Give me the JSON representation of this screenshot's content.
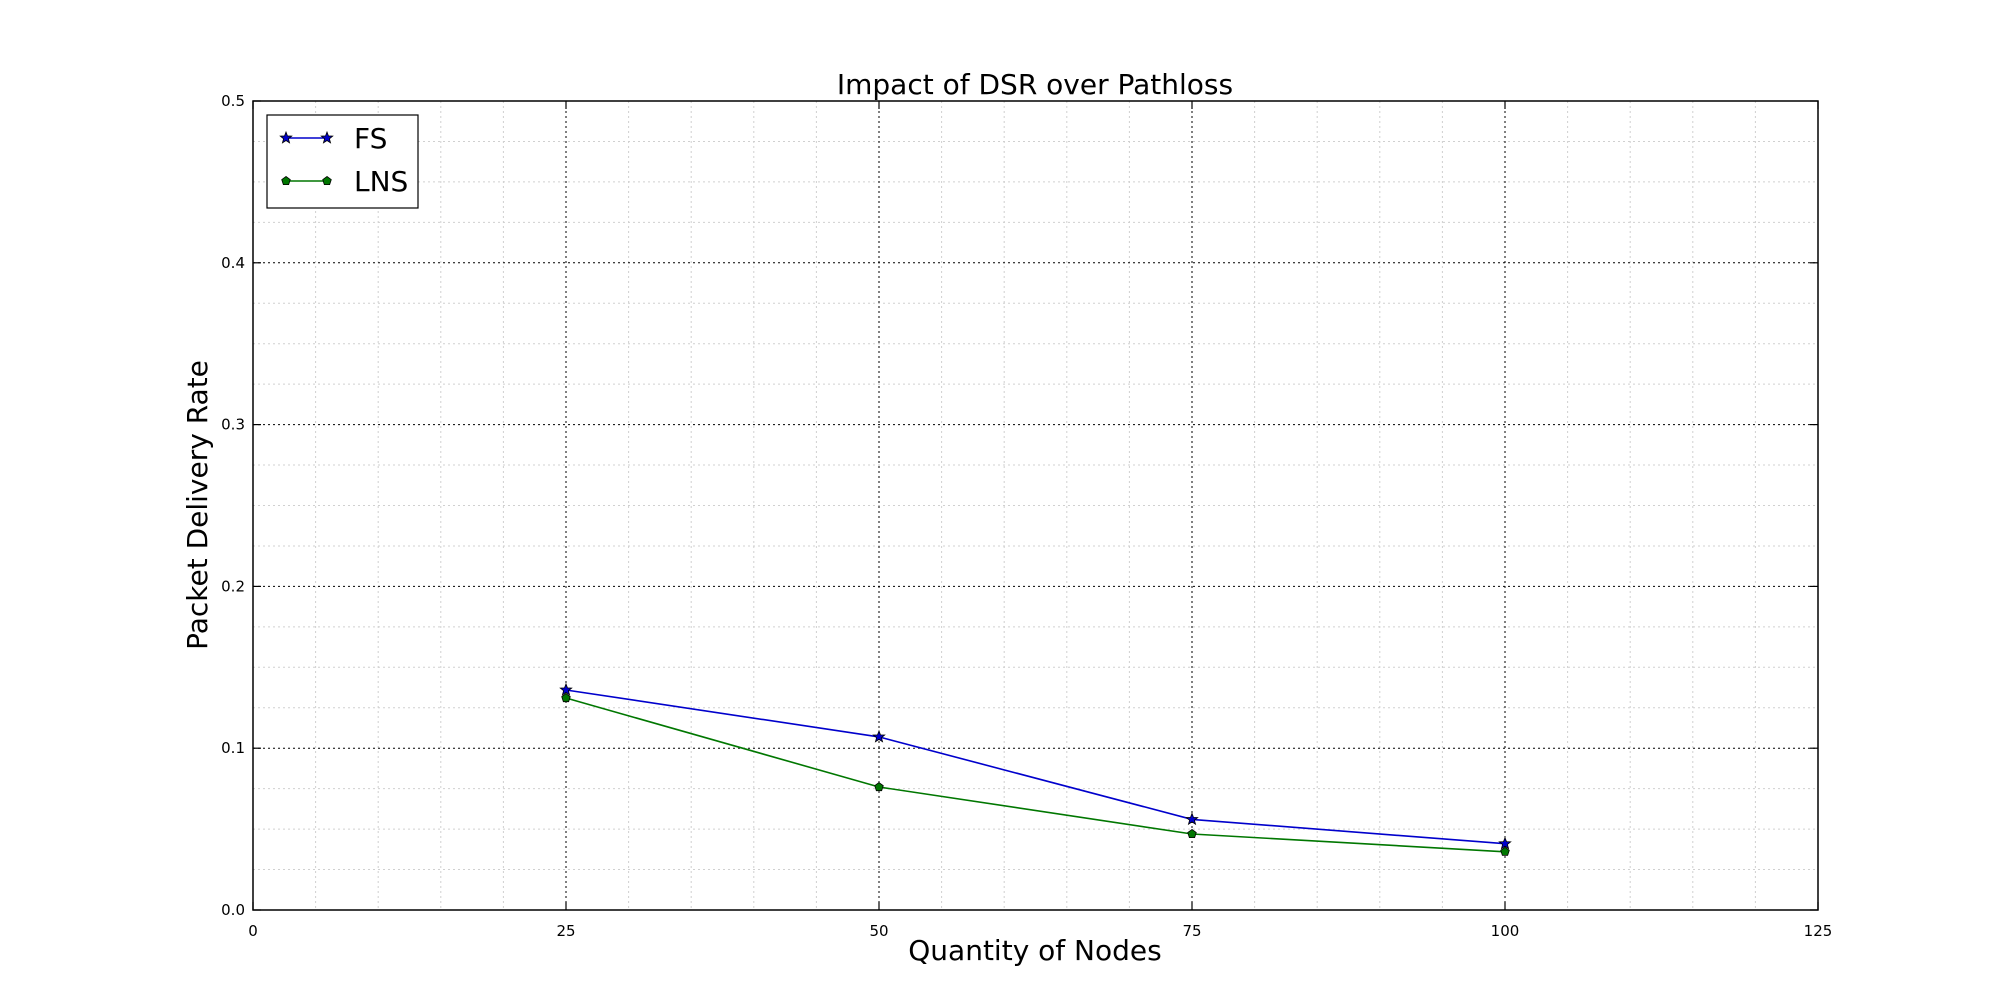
{
  "chart_data": {
    "type": "line",
    "title": "Impact of DSR over Pathloss",
    "xlabel": "Quantity of Nodes",
    "ylabel": "Packet Delivery Rate",
    "xlim": [
      0,
      125
    ],
    "ylim": [
      0,
      0.5
    ],
    "x_ticks": [
      "0",
      "25",
      "50",
      "75",
      "100",
      "125"
    ],
    "y_ticks": [
      "0.0",
      "0.1",
      "0.2",
      "0.3",
      "0.4",
      "0.5"
    ],
    "x": [
      25,
      50,
      75,
      100
    ],
    "series": [
      {
        "name": "FS",
        "color": "#0000cc",
        "marker": "star",
        "values": [
          0.136,
          0.107,
          0.056,
          0.041
        ]
      },
      {
        "name": "LNS",
        "color": "#007700",
        "marker": "pentagon",
        "values": [
          0.131,
          0.076,
          0.047,
          0.036
        ]
      }
    ],
    "grid": true,
    "legend": "top-left"
  }
}
